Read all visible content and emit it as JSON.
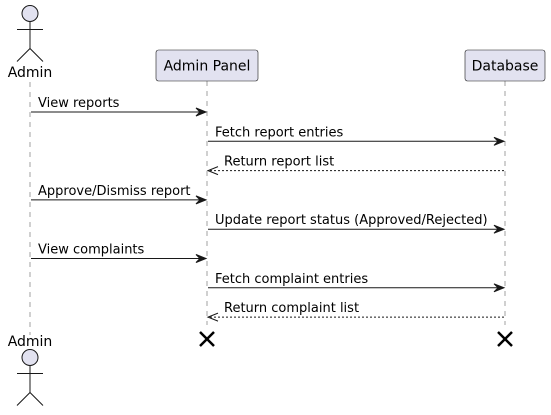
{
  "participants": {
    "admin": {
      "label": "Admin"
    },
    "panel": {
      "label": "Admin Panel"
    },
    "db": {
      "label": "Database"
    }
  },
  "messages": [
    {
      "label": "View reports",
      "from": "admin",
      "to": "panel",
      "style": "solid"
    },
    {
      "label": "Fetch report entries",
      "from": "panel",
      "to": "db",
      "style": "solid"
    },
    {
      "label": "Return report list",
      "from": "db",
      "to": "panel",
      "style": "dashed"
    },
    {
      "label": "Approve/Dismiss report",
      "from": "admin",
      "to": "panel",
      "style": "solid"
    },
    {
      "label": "Update report status (Approved/Rejected)",
      "from": "panel",
      "to": "db",
      "style": "solid"
    },
    {
      "label": "View complaints",
      "from": "admin",
      "to": "panel",
      "style": "solid"
    },
    {
      "label": "Fetch complaint entries",
      "from": "panel",
      "to": "db",
      "style": "solid"
    },
    {
      "label": "Return complaint list",
      "from": "db",
      "to": "panel",
      "style": "dashed"
    }
  ],
  "colors": {
    "participant_fill": "#E2E2F0",
    "line": "#181818",
    "lifeline": "#A0A0A0"
  },
  "destroyed": [
    "panel",
    "db"
  ]
}
